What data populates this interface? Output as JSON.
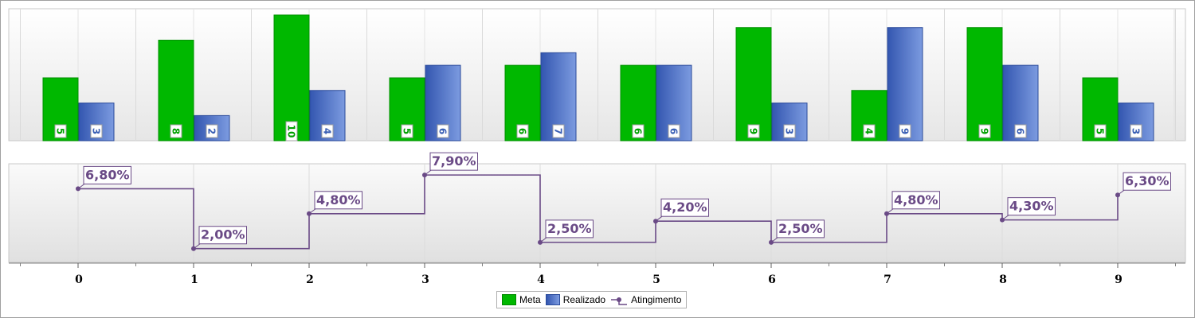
{
  "chart_data": [
    {
      "type": "bar",
      "categories": [
        "0",
        "1",
        "2",
        "3",
        "4",
        "5",
        "6",
        "7",
        "8",
        "9"
      ],
      "series": [
        {
          "name": "Meta",
          "values": [
            5,
            8,
            10,
            5,
            6,
            6,
            9,
            4,
            9,
            5
          ],
          "color": "#00b800"
        },
        {
          "name": "Realizado",
          "values": [
            3,
            2,
            4,
            6,
            7,
            6,
            3,
            9,
            6,
            3
          ],
          "color": "#4a6fc4"
        }
      ],
      "grid": true
    },
    {
      "type": "line",
      "step": true,
      "x": [
        "0",
        "1",
        "2",
        "3",
        "4",
        "5",
        "6",
        "7",
        "8",
        "9"
      ],
      "series": [
        {
          "name": "Atingimento",
          "values": [
            6.8,
            2.0,
            4.8,
            7.9,
            2.5,
            4.2,
            2.5,
            4.8,
            4.3,
            6.3
          ],
          "labels": [
            "6,80%",
            "2,00%",
            "4,80%",
            "7,90%",
            "2,50%",
            "4,20%",
            "2,50%",
            "4,80%",
            "4,30%",
            "6,30%"
          ],
          "color": "#6a4a86"
        }
      ],
      "xlabels": [
        "0",
        "1",
        "2",
        "3",
        "4",
        "5",
        "6",
        "7",
        "8",
        "9"
      ],
      "grid": true
    }
  ],
  "legend": {
    "items": [
      {
        "label": "Meta",
        "color": "#00b800"
      },
      {
        "label": "Realizado",
        "color": "#4a6fc4"
      },
      {
        "label": "Atingimento",
        "color": "#6a4a86"
      }
    ]
  }
}
